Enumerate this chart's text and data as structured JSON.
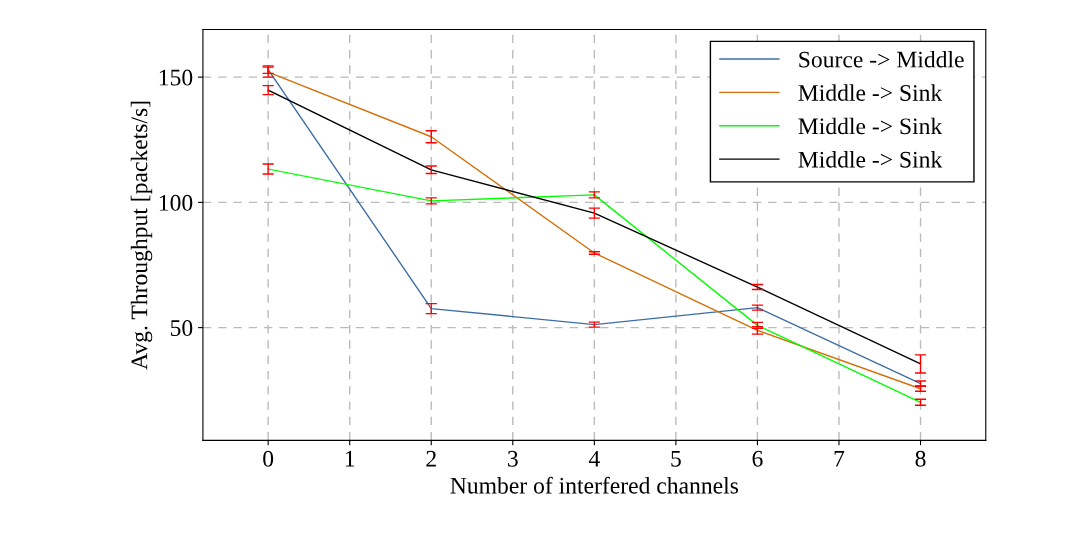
{
  "chart_data": {
    "type": "line",
    "xlabel": "Number of interfered channels",
    "ylabel": "Avg. Throughput [packets/s]",
    "x": [
      0,
      2,
      4,
      6,
      8
    ],
    "series": [
      {
        "name": "Source -> Middle",
        "color": "#3c6ea5",
        "values": [
          153,
          57.6,
          51.2,
          58,
          27.7
        ],
        "errors": [
          1.5,
          2,
          1,
          1,
          1
        ]
      },
      {
        "name": "Middle -> Sink",
        "color": "#d4700a",
        "values": [
          152,
          126.2,
          79.8,
          48.9,
          25.6
        ],
        "errors": [
          2,
          2.4,
          0.5,
          1.5,
          1
        ]
      },
      {
        "name": "Middle -> Sink",
        "color": "#00ff00",
        "values": [
          113.3,
          100.6,
          103,
          50.9,
          20.2
        ],
        "errors": [
          2,
          1.2,
          1.2,
          1.2,
          1.2
        ]
      },
      {
        "name": "Middle -> Sink",
        "color": "#000000",
        "values": [
          144.8,
          113,
          95.7,
          66.2,
          35.5
        ],
        "errors": [
          1.8,
          1.5,
          2,
          1,
          3.6
        ]
      }
    ],
    "xlim": [
      -0.8,
      8.8
    ],
    "ylim": [
      5,
      169
    ],
    "xticks": [
      0,
      1,
      2,
      3,
      4,
      5,
      6,
      7,
      8
    ],
    "yticks": [
      50,
      100,
      150
    ],
    "grid": true,
    "legend": "top right",
    "marker": "none",
    "line_style": "solid"
  }
}
